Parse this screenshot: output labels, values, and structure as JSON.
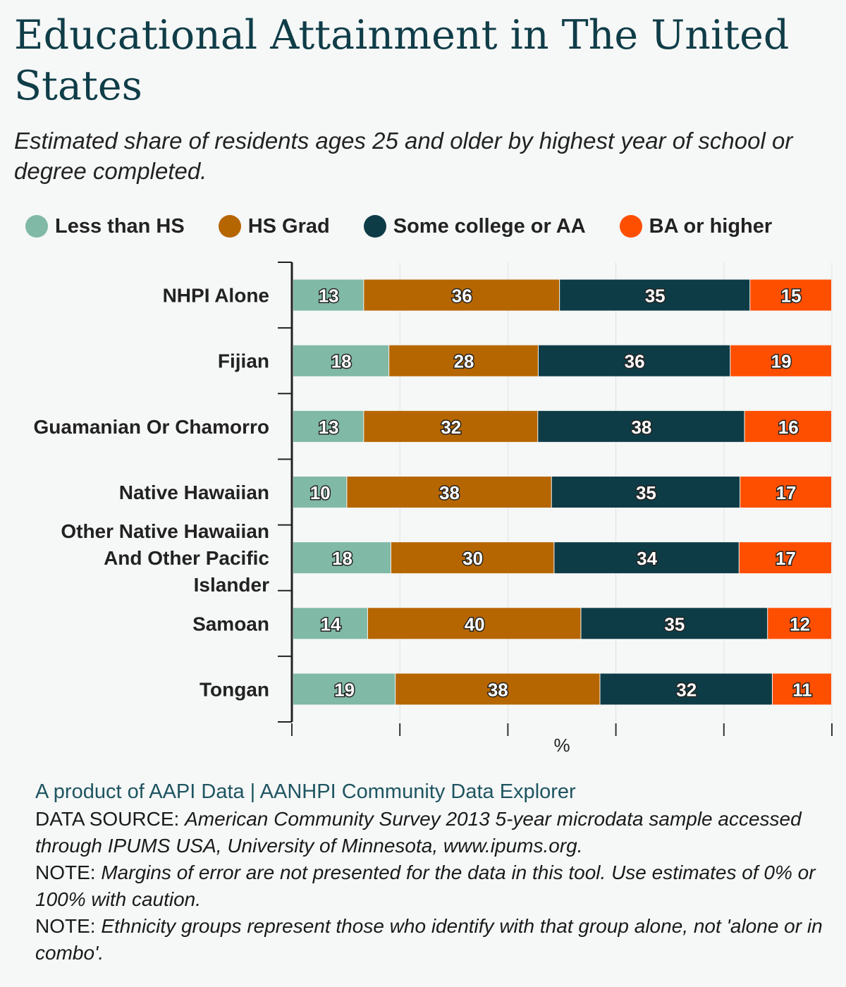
{
  "title": "Educational Attainment in The United States",
  "subtitle": "Estimated share of residents ages 25 and older by highest year of school or degree completed.",
  "legend": [
    {
      "label": "Less than HS",
      "color": "#80b9a6"
    },
    {
      "label": "HS Grad",
      "color": "#b66600"
    },
    {
      "label": "Some college or AA",
      "color": "#0e3c46"
    },
    {
      "label": "BA or higher",
      "color": "#fe4f00"
    }
  ],
  "chart_data": {
    "type": "bar",
    "orientation": "horizontal",
    "stacked": true,
    "categories": [
      "NHPI Alone",
      "Fijian",
      "Guamanian Or Chamorro",
      "Native Hawaiian",
      "Other Native Hawaiian And Other Pacific Islander",
      "Samoan",
      "Tongan"
    ],
    "series": [
      {
        "name": "Less than HS",
        "color": "#80b9a6",
        "values": [
          13,
          18,
          13,
          10,
          18,
          14,
          19
        ]
      },
      {
        "name": "HS Grad",
        "color": "#b66600",
        "values": [
          36,
          28,
          32,
          38,
          30,
          40,
          38
        ]
      },
      {
        "name": "Some college or AA",
        "color": "#0e3c46",
        "values": [
          35,
          36,
          38,
          35,
          34,
          35,
          32
        ]
      },
      {
        "name": "BA or higher",
        "color": "#fe4f00",
        "values": [
          15,
          19,
          16,
          17,
          17,
          12,
          11
        ]
      }
    ],
    "xlabel": "%",
    "ylabel": "",
    "grid": true,
    "legend_position": "top",
    "data_labels": true
  },
  "footer": {
    "credit": "A product of AAPI Data | AANHPI Community Data Explorer",
    "lines": [
      {
        "label": " DATA SOURCE: ",
        "text": "American Community Survey 2013 5-year microdata sample accessed through IPUMS USA, University of Minnesota, www.ipums.org."
      },
      {
        "label": " NOTE: ",
        "text": "Margins of error are not presented for the data in this tool. Use estimates of 0% or 100% with caution."
      },
      {
        "label": " NOTE: ",
        "text": "Ethnicity groups represent those who identify with that group alone, not 'alone or in combo'."
      }
    ]
  }
}
